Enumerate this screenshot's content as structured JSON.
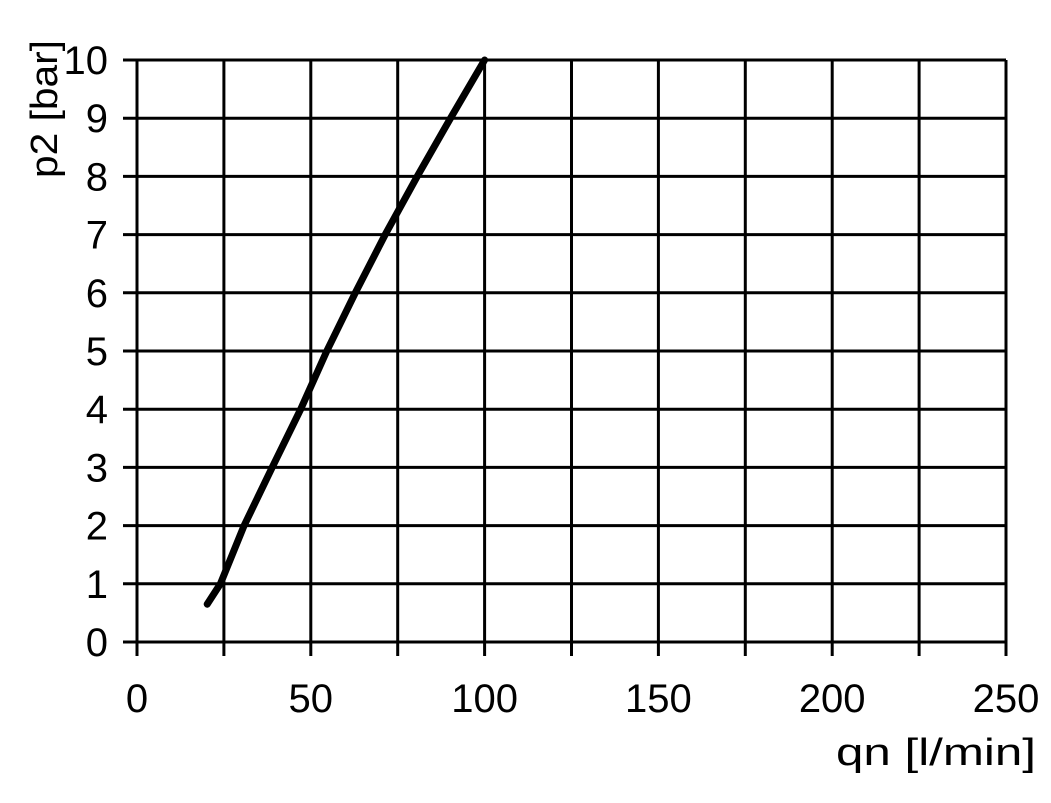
{
  "chart_data": {
    "type": "line",
    "title": "",
    "xlabel": "qn [l/min]",
    "ylabel": "p2 [bar]",
    "xlim": [
      0,
      250
    ],
    "ylim": [
      0,
      10
    ],
    "xticks": [
      0,
      50,
      100,
      150,
      200,
      250
    ],
    "yticks": [
      0,
      1,
      2,
      3,
      4,
      5,
      6,
      7,
      8,
      9,
      10
    ],
    "x_gridlines": [
      0,
      25,
      50,
      75,
      100,
      125,
      150,
      175,
      200,
      225,
      250
    ],
    "y_gridlines": [
      0,
      1,
      2,
      3,
      4,
      5,
      6,
      7,
      8,
      9,
      10
    ],
    "grid": true,
    "series": [
      {
        "color": "#000000",
        "x": [
          20.2,
          24,
          30.8,
          38.9,
          47.1,
          54.6,
          62.8,
          71.4,
          80.6,
          90.2,
          100
        ],
        "y": [
          0.65,
          1,
          2,
          3,
          4,
          5,
          6,
          7,
          8,
          9,
          10
        ]
      }
    ]
  }
}
